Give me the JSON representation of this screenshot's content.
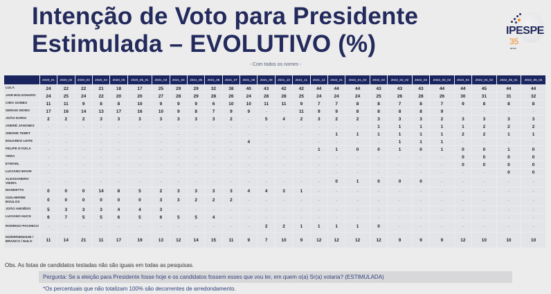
{
  "header": {
    "title_line1": "Intenção de Voto para Presidente",
    "title_line2": "Estimulada – EVOLUTIVO (%)",
    "subtitle": "- Com todos os nomes -"
  },
  "logo": {
    "name": "IPESPE",
    "years": "35",
    "anos": "anos",
    "brand_color": "#232a5c",
    "accent_color": "#f08a24"
  },
  "table": {
    "columns": [
      "2020_01",
      "2020_02",
      "2020_03",
      "2020_04",
      "2020_05",
      "2020_05_01",
      "2021_03",
      "2021_04",
      "2021_05",
      "2021_06",
      "2021_07",
      "2021_08",
      "2021_09",
      "2021_10",
      "2021_11",
      "2021_12",
      "2022_01",
      "2022_01_02",
      "2022_02",
      "2022_02_02",
      "2022_03",
      "2022_03_02",
      "2022_04",
      "2022_04_02",
      "2022_05_01",
      "2022_05_02"
    ],
    "rows": [
      {
        "label": "LULA",
        "values": [
          "24",
          "22",
          "22",
          "21",
          "18",
          "17",
          "25",
          "29",
          "29",
          "32",
          "38",
          "40",
          "43",
          "42",
          "42",
          "44",
          "44",
          "44",
          "43",
          "43",
          "43",
          "44",
          "44",
          "45",
          "44",
          "44"
        ]
      },
      {
        "label": "JAIR BOLSONARO",
        "values": [
          "24",
          "25",
          "24",
          "22",
          "20",
          "20",
          "27",
          "28",
          "29",
          "28",
          "26",
          "24",
          "28",
          "28",
          "25",
          "24",
          "24",
          "24",
          "25",
          "26",
          "28",
          "26",
          "30",
          "31",
          "31",
          "32"
        ]
      },
      {
        "label": "CIRO GOMES",
        "values": [
          "11",
          "11",
          "9",
          "8",
          "8",
          "10",
          "9",
          "9",
          "9",
          "6",
          "10",
          "10",
          "11",
          "11",
          "9",
          "7",
          "7",
          "8",
          "8",
          "7",
          "8",
          "7",
          "9",
          "8",
          "8",
          "8"
        ]
      },
      {
        "label": "SERGIO MORO",
        "values": [
          "17",
          "16",
          "14",
          "13",
          "17",
          "16",
          "10",
          "9",
          "8",
          "7",
          "9",
          "9",
          "-",
          "-",
          "11",
          "9",
          "9",
          "8",
          "8",
          "8",
          "8",
          "9",
          "-",
          "-",
          "-",
          "-"
        ]
      },
      {
        "label": "JOÃO DORIA",
        "values": [
          "2",
          "2",
          "2",
          "3",
          "3",
          "3",
          "3",
          "3",
          "3",
          "3",
          "2",
          "-",
          "5",
          "4",
          "2",
          "3",
          "2",
          "2",
          "3",
          "3",
          "3",
          "2",
          "3",
          "3",
          "3",
          "3"
        ]
      },
      {
        "label": "ANDRÉ JANONES",
        "values": [
          "-",
          "-",
          "-",
          "-",
          "-",
          "-",
          "-",
          "-",
          "-",
          "-",
          "-",
          "-",
          "-",
          "-",
          "-",
          "-",
          "-",
          "-",
          "1",
          "1",
          "1",
          "1",
          "1",
          "2",
          "2",
          "2"
        ]
      },
      {
        "label": "SIMONE TEBET",
        "values": [
          "-",
          "-",
          "-",
          "-",
          "-",
          "-",
          "-",
          "-",
          "-",
          "-",
          "-",
          "-",
          "-",
          "-",
          "-",
          "-",
          "1",
          "1",
          "1",
          "1",
          "1",
          "1",
          "2",
          "2",
          "1",
          "1"
        ]
      },
      {
        "label": "EDUARDO LEITE",
        "values": [
          "-",
          "-",
          "-",
          "-",
          "-",
          "-",
          "-",
          "-",
          "-",
          "-",
          "-",
          "4",
          "-",
          "-",
          "-",
          "-",
          "-",
          "-",
          "-",
          "1",
          "1",
          "1",
          "-",
          "-",
          "-",
          "-"
        ]
      },
      {
        "label": "FELIPE D'AVILA",
        "values": [
          "-",
          "-",
          "-",
          "-",
          "-",
          "-",
          "-",
          "-",
          "-",
          "-",
          "-",
          "-",
          "-",
          "-",
          "-",
          "1",
          "1",
          "0",
          "0",
          "1",
          "0",
          "1",
          "0",
          "0",
          "1",
          "0"
        ]
      },
      {
        "label": "VERA",
        "values": [
          "-",
          "-",
          "-",
          "-",
          "-",
          "-",
          "-",
          "-",
          "-",
          "-",
          "-",
          "-",
          "-",
          "-",
          "-",
          "-",
          "-",
          "-",
          "-",
          "-",
          "-",
          "-",
          "0",
          "0",
          "0",
          "0"
        ]
      },
      {
        "label": "EYMAEL",
        "values": [
          "-",
          "-",
          "-",
          "-",
          "-",
          "-",
          "-",
          "-",
          "-",
          "-",
          "-",
          "-",
          "-",
          "-",
          "-",
          "-",
          "-",
          "-",
          "-",
          "-",
          "-",
          "-",
          "0",
          "0",
          "0",
          "0"
        ]
      },
      {
        "label": "LUCIANO BIVAR",
        "values": [
          "-",
          "-",
          "-",
          "-",
          "-",
          "-",
          "-",
          "-",
          "-",
          "-",
          "-",
          "-",
          "-",
          "-",
          "-",
          "-",
          "-",
          "-",
          "-",
          "-",
          "-",
          "-",
          "-",
          "-",
          "0",
          "0"
        ]
      },
      {
        "label": "ALESSANDRO VIEIRA",
        "tall": "two",
        "values": [
          "-",
          "-",
          "-",
          "-",
          "-",
          "-",
          "-",
          "-",
          "-",
          "-",
          "-",
          "-",
          "-",
          "-",
          "-",
          "-",
          "0",
          "1",
          "0",
          "0",
          "0",
          "-",
          "-",
          "-",
          "-",
          "-"
        ]
      },
      {
        "label": "MANDETTA",
        "values": [
          "0",
          "0",
          "0",
          "14",
          "8",
          "5",
          "2",
          "3",
          "3",
          "3",
          "3",
          "4",
          "4",
          "3",
          "1",
          "-",
          "-",
          "-",
          "-",
          "-",
          "-",
          "-",
          "-",
          "-",
          "-",
          "-"
        ]
      },
      {
        "label": "GUILHERME BOULOS",
        "tall": "two",
        "values": [
          "0",
          "0",
          "0",
          "0",
          "0",
          "0",
          "3",
          "3",
          "2",
          "2",
          "2",
          "-",
          "-",
          "-",
          "-",
          "-",
          "-",
          "-",
          "-",
          "-",
          "-",
          "-",
          "-",
          "-",
          "-",
          "-"
        ]
      },
      {
        "label": "JOÃO AMOÊDO",
        "values": [
          "5",
          "3",
          "3",
          "3",
          "4",
          "4",
          "3",
          "-",
          "-",
          "-",
          "-",
          "-",
          "-",
          "-",
          "-",
          "-",
          "-",
          "-",
          "-",
          "-",
          "-",
          "-",
          "-",
          "-",
          "-",
          "-"
        ]
      },
      {
        "label": "LUCIANO HUCK",
        "values": [
          "6",
          "7",
          "5",
          "5",
          "6",
          "5",
          "6",
          "5",
          "5",
          "4",
          "-",
          "-",
          "-",
          "-",
          "-",
          "-",
          "-",
          "-",
          "-",
          "-",
          "-",
          "-",
          "-",
          "-",
          "-",
          "-"
        ]
      },
      {
        "label": "RODRIGO PACHECO",
        "tall": "two",
        "values": [
          "-",
          "-",
          "-",
          "-",
          "-",
          "-",
          "-",
          "-",
          "-",
          "-",
          "-",
          "-",
          "2",
          "2",
          "1",
          "1",
          "1",
          "1",
          "0",
          "-",
          "-",
          "-",
          "-",
          "-",
          "-",
          "-"
        ]
      },
      {
        "label": "NS/NR/NENHUM / BRANCO / NULO",
        "tall": "three",
        "values": [
          "11",
          "14",
          "21",
          "11",
          "17",
          "19",
          "13",
          "12",
          "14",
          "15",
          "11",
          "9",
          "7",
          "10",
          "9",
          "12",
          "12",
          "12",
          "12",
          "9",
          "9",
          "9",
          "12",
          "10",
          "10",
          "10"
        ]
      }
    ]
  },
  "footer": {
    "obs": "Obs. As listas de candidatos testadas não são iguais em todas as pesquisas.",
    "pergunta": "Pergunta:  Se a eleição para Presidente fosse hoje e os candidatos fossem esses que vou ler, em quem o(a) Sr(a) votaria? (ESTIMULADA)",
    "nota": "*Os percentuais que não totalizam 100% são decorrentes de arredondamento."
  }
}
